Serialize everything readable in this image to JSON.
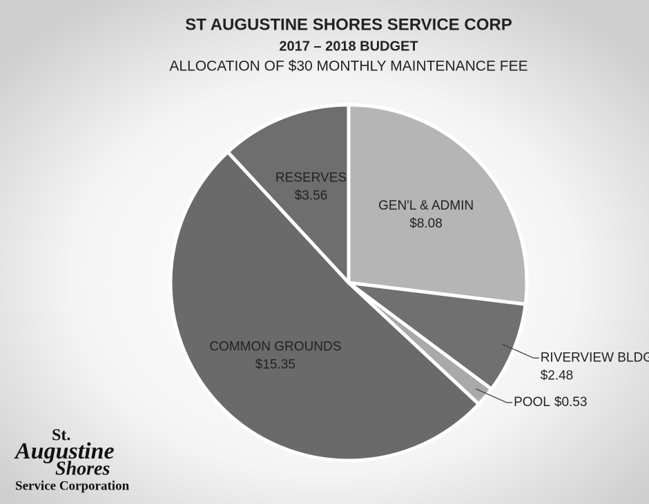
{
  "chart_data": {
    "type": "pie",
    "title": "ST AUGUSTINE SHORES SERVICE CORP",
    "subtitle": "2017 – 2018  BUDGET",
    "caption": "ALLOCATION OF $30 MONTHLY MAINTENANCE FEE",
    "categories": [
      "GEN'L & ADMIN",
      "RIVERVIEW BLDG",
      "POOL",
      "COMMON GROUNDS",
      "RESERVES"
    ],
    "values": [
      8.08,
      2.48,
      0.53,
      15.35,
      3.56
    ],
    "value_labels": [
      "$8.08",
      "$2.48",
      "$0.53",
      "$15.35",
      "$3.56"
    ],
    "colors": [
      "#b5b5b5",
      "#707070",
      "#a9a9a9",
      "#6a6a6a",
      "#6e6e6e"
    ]
  },
  "logo": {
    "line1": "St.",
    "line2": "Augustine",
    "line3": "Shores",
    "line4": "Service Corporation"
  }
}
